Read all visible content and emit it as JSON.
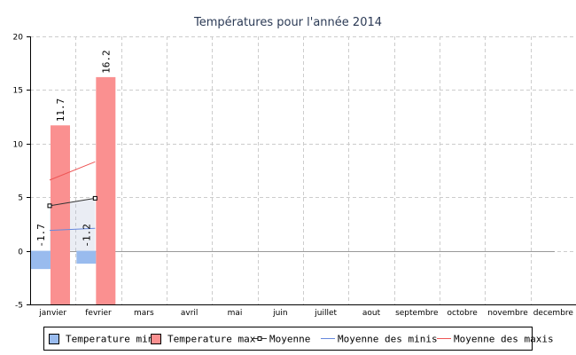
{
  "chart_data": {
    "type": "bar",
    "title": "Températures pour l'année 2014",
    "xlabel": "",
    "ylabel": "",
    "ylim": [
      -5,
      20
    ],
    "yticks": [
      -5,
      0,
      5,
      10,
      15,
      20
    ],
    "grid": true,
    "legend_position": "bottom",
    "categories": [
      "janvier",
      "fevrier",
      "mars",
      "avril",
      "mai",
      "juin",
      "juillet",
      "aout",
      "septembre",
      "octobre",
      "novembre",
      "decembre"
    ],
    "series": [
      {
        "name": "Temperature min",
        "kind": "bar",
        "color": "#99bbee",
        "values": [
          -1.7,
          -1.2,
          null,
          null,
          null,
          null,
          null,
          null,
          null,
          null,
          null,
          null
        ]
      },
      {
        "name": "Temperature max",
        "kind": "bar",
        "color": "#fa9090",
        "values": [
          11.7,
          16.2,
          null,
          null,
          null,
          null,
          null,
          null,
          null,
          null,
          null,
          null
        ]
      },
      {
        "name": "Moyenne",
        "kind": "line-markers",
        "color": "#333333",
        "values": [
          4.2,
          4.9,
          null,
          null,
          null,
          null,
          null,
          null,
          null,
          null,
          null,
          null
        ]
      },
      {
        "name": "Moyenne des minis",
        "kind": "line",
        "color": "#6688dd",
        "values": [
          1.9,
          2.1,
          null,
          null,
          null,
          null,
          null,
          null,
          null,
          null,
          null,
          null
        ]
      },
      {
        "name": "Moyenne des maxis",
        "kind": "line",
        "color": "#ee5555",
        "values": [
          6.6,
          8.3,
          null,
          null,
          null,
          null,
          null,
          null,
          null,
          null,
          null,
          null
        ]
      }
    ],
    "data_labels": {
      "Temperature min": [
        "-1.7",
        "-1.2"
      ],
      "Temperature max": [
        "11.7",
        "16.2"
      ]
    }
  }
}
